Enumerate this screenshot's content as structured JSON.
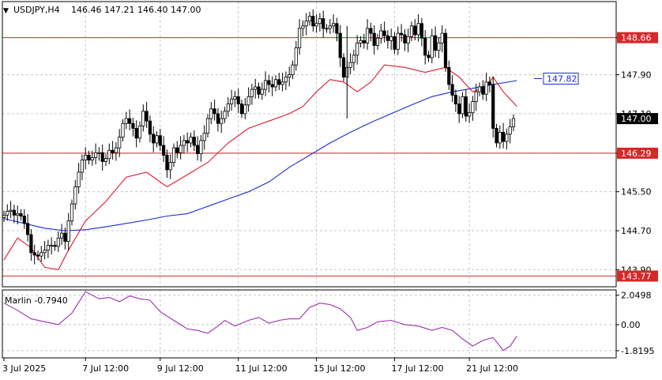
{
  "header": {
    "symbol_label": "USDJPY,H4",
    "ohlc_label": "146.46 147.21 146.40 147.00",
    "menu_arrow": "▼"
  },
  "chart_data": {
    "type": "candlestick",
    "title": "USDJPY,H4",
    "price_axis": {
      "ylim": [
        143.55,
        149.4
      ],
      "ticks": [
        "148.66",
        "147.90",
        "147.10",
        "146.29",
        "145.50",
        "144.70",
        "143.90"
      ]
    },
    "time_axis": {
      "labels": [
        "3 Jul 2025",
        "7 Jul 12:00",
        "9 Jul 12:00",
        "11 Jul 12:00",
        "15 Jul 12:00",
        "17 Jul 12:00",
        "21 Jul 12:00"
      ],
      "label_bar_index": [
        0,
        24,
        46,
        69,
        92,
        115,
        137
      ]
    },
    "horizontal_levels": [
      {
        "price": 148.66,
        "label": "148.66",
        "color": "#d62828"
      },
      {
        "price": 146.29,
        "label": "146.29",
        "color": "#d62828"
      },
      {
        "price": 143.77,
        "label": "143.77",
        "color": "#d62828"
      }
    ],
    "current_price": {
      "value": 147.0,
      "label": "147.00"
    },
    "annotation": {
      "value": 147.82,
      "label": "147.82",
      "color": "#1a2bd6"
    },
    "series": [
      {
        "role": "price",
        "type": "candlestick",
        "close": [
          145.02,
          145.1,
          145.12,
          145.02,
          145.05,
          145.0,
          144.85,
          144.62,
          144.25,
          144.2,
          144.18,
          144.25,
          144.3,
          144.4,
          144.4,
          144.38,
          144.55,
          144.65,
          144.48,
          144.9,
          145.25,
          145.6,
          145.9,
          146.15,
          146.25,
          146.15,
          146.2,
          146.3,
          146.3,
          146.12,
          146.18,
          146.35,
          146.3,
          146.4,
          146.62,
          146.9,
          147.0,
          146.9,
          146.8,
          146.6,
          146.85,
          147.15,
          146.95,
          146.68,
          146.5,
          146.65,
          146.45,
          146.25,
          145.95,
          146.1,
          146.4,
          146.3,
          146.45,
          146.55,
          146.5,
          146.62,
          146.45,
          146.28,
          146.55,
          146.7,
          147.0,
          147.2,
          147.1,
          146.9,
          147.0,
          147.15,
          147.3,
          147.4,
          147.45,
          147.3,
          147.1,
          147.28,
          147.45,
          147.6,
          147.65,
          147.5,
          147.6,
          147.78,
          147.7,
          147.65,
          147.8,
          147.7,
          147.75,
          147.85,
          147.9,
          148.1,
          148.45,
          148.85,
          148.9,
          149.0,
          149.1,
          148.9,
          148.95,
          149.05,
          148.85,
          148.85,
          148.9,
          148.95,
          148.75,
          148.25,
          147.85,
          148.05,
          148.15,
          148.3,
          148.55,
          148.6,
          148.55,
          148.85,
          148.75,
          148.5,
          148.65,
          148.8,
          148.7,
          148.6,
          148.68,
          148.42,
          148.75,
          148.72,
          148.55,
          148.68,
          148.9,
          148.72,
          148.95,
          148.65,
          148.3,
          148.25,
          148.7,
          148.4,
          148.55,
          148.75,
          148.05,
          147.7,
          147.48,
          147.3,
          147.1,
          147.45,
          147.05,
          147.12,
          147.35,
          147.55,
          147.65,
          147.5,
          147.75,
          147.7,
          146.8,
          146.5,
          146.72,
          146.53,
          146.68,
          146.83,
          147.0
        ],
        "note": "candles approximated from screenshot; open = previous close"
      },
      {
        "role": "ma-fast",
        "color": "#e0182e",
        "values": [
          {
            "bar": 0,
            "price": 144.1
          },
          {
            "bar": 4,
            "price": 144.55
          },
          {
            "bar": 8,
            "price": 144.35
          },
          {
            "bar": 12,
            "price": 143.95
          },
          {
            "bar": 16,
            "price": 143.9
          },
          {
            "bar": 19,
            "price": 144.3
          },
          {
            "bar": 24,
            "price": 144.9
          },
          {
            "bar": 30,
            "price": 145.3
          },
          {
            "bar": 36,
            "price": 145.8
          },
          {
            "bar": 42,
            "price": 145.9
          },
          {
            "bar": 48,
            "price": 145.6
          },
          {
            "bar": 54,
            "price": 145.85
          },
          {
            "bar": 60,
            "price": 146.1
          },
          {
            "bar": 66,
            "price": 146.5
          },
          {
            "bar": 72,
            "price": 146.8
          },
          {
            "bar": 78,
            "price": 146.95
          },
          {
            "bar": 84,
            "price": 147.1
          },
          {
            "bar": 88,
            "price": 147.25
          },
          {
            "bar": 92,
            "price": 147.55
          },
          {
            "bar": 96,
            "price": 147.8
          },
          {
            "bar": 100,
            "price": 147.75
          },
          {
            "bar": 104,
            "price": 147.55
          },
          {
            "bar": 108,
            "price": 147.75
          },
          {
            "bar": 112,
            "price": 148.1
          },
          {
            "bar": 118,
            "price": 148.05
          },
          {
            "bar": 124,
            "price": 147.95
          },
          {
            "bar": 130,
            "price": 148.05
          },
          {
            "bar": 134,
            "price": 147.85
          },
          {
            "bar": 138,
            "price": 147.55
          },
          {
            "bar": 142,
            "price": 147.65
          },
          {
            "bar": 144,
            "price": 147.85
          },
          {
            "bar": 147,
            "price": 147.55
          },
          {
            "bar": 151,
            "price": 147.25
          }
        ]
      },
      {
        "role": "ma-slow",
        "color": "#1a2bd6",
        "values": [
          {
            "bar": 0,
            "price": 144.95
          },
          {
            "bar": 6,
            "price": 144.85
          },
          {
            "bar": 12,
            "price": 144.75
          },
          {
            "bar": 18,
            "price": 144.7
          },
          {
            "bar": 24,
            "price": 144.72
          },
          {
            "bar": 30,
            "price": 144.78
          },
          {
            "bar": 36,
            "price": 144.85
          },
          {
            "bar": 42,
            "price": 144.92
          },
          {
            "bar": 48,
            "price": 145.0
          },
          {
            "bar": 54,
            "price": 145.05
          },
          {
            "bar": 60,
            "price": 145.2
          },
          {
            "bar": 66,
            "price": 145.35
          },
          {
            "bar": 72,
            "price": 145.5
          },
          {
            "bar": 78,
            "price": 145.7
          },
          {
            "bar": 84,
            "price": 146.0
          },
          {
            "bar": 90,
            "price": 146.25
          },
          {
            "bar": 96,
            "price": 146.5
          },
          {
            "bar": 102,
            "price": 146.72
          },
          {
            "bar": 108,
            "price": 146.92
          },
          {
            "bar": 114,
            "price": 147.1
          },
          {
            "bar": 120,
            "price": 147.28
          },
          {
            "bar": 126,
            "price": 147.45
          },
          {
            "bar": 132,
            "price": 147.55
          },
          {
            "bar": 138,
            "price": 147.62
          },
          {
            "bar": 144,
            "price": 147.7
          },
          {
            "bar": 151,
            "price": 147.78
          }
        ]
      }
    ],
    "indicator": {
      "label": "Marlin -0.7940",
      "name": "Marlin",
      "value": -0.794,
      "color": "#9a2fb0",
      "ylim": [
        -2.32,
        2.42
      ],
      "ticks": [
        "2.0498",
        "0.00",
        "-1.8195"
      ],
      "values": [
        {
          "bar": 0,
          "price": 1.5
        },
        {
          "bar": 4,
          "price": 1.0
        },
        {
          "bar": 8,
          "price": 0.4
        },
        {
          "bar": 12,
          "price": 0.2
        },
        {
          "bar": 16,
          "price": 0.0
        },
        {
          "bar": 20,
          "price": 0.8
        },
        {
          "bar": 24,
          "price": 2.3
        },
        {
          "bar": 28,
          "price": 1.8
        },
        {
          "bar": 31,
          "price": 1.9
        },
        {
          "bar": 34,
          "price": 1.6
        },
        {
          "bar": 37,
          "price": 2.0
        },
        {
          "bar": 40,
          "price": 1.8
        },
        {
          "bar": 43,
          "price": 1.7
        },
        {
          "bar": 46,
          "price": 0.9
        },
        {
          "bar": 50,
          "price": 0.3
        },
        {
          "bar": 54,
          "price": -0.3
        },
        {
          "bar": 57,
          "price": -0.4
        },
        {
          "bar": 60,
          "price": -0.6
        },
        {
          "bar": 63,
          "price": -0.1
        },
        {
          "bar": 65,
          "price": 0.3
        },
        {
          "bar": 68,
          "price": -0.1
        },
        {
          "bar": 72,
          "price": 0.3
        },
        {
          "bar": 75,
          "price": 0.5
        },
        {
          "bar": 78,
          "price": 0.1
        },
        {
          "bar": 81,
          "price": 0.3
        },
        {
          "bar": 84,
          "price": 0.4
        },
        {
          "bar": 87,
          "price": 0.4
        },
        {
          "bar": 90,
          "price": 1.2
        },
        {
          "bar": 93,
          "price": 1.5
        },
        {
          "bar": 96,
          "price": 1.4
        },
        {
          "bar": 99,
          "price": 1.1
        },
        {
          "bar": 102,
          "price": 0.5
        },
        {
          "bar": 104,
          "price": -0.4
        },
        {
          "bar": 107,
          "price": -0.2
        },
        {
          "bar": 110,
          "price": 0.2
        },
        {
          "bar": 114,
          "price": 0.3
        },
        {
          "bar": 118,
          "price": 0.0
        },
        {
          "bar": 122,
          "price": -0.1
        },
        {
          "bar": 126,
          "price": -0.4
        },
        {
          "bar": 129,
          "price": -0.2
        },
        {
          "bar": 132,
          "price": -0.4
        },
        {
          "bar": 135,
          "price": -1.0
        },
        {
          "bar": 138,
          "price": -1.5
        },
        {
          "bar": 141,
          "price": -1.1
        },
        {
          "bar": 144,
          "price": -0.9
        },
        {
          "bar": 147,
          "price": -1.8
        },
        {
          "bar": 149,
          "price": -1.5
        },
        {
          "bar": 151,
          "price": -0.8
        }
      ]
    }
  }
}
